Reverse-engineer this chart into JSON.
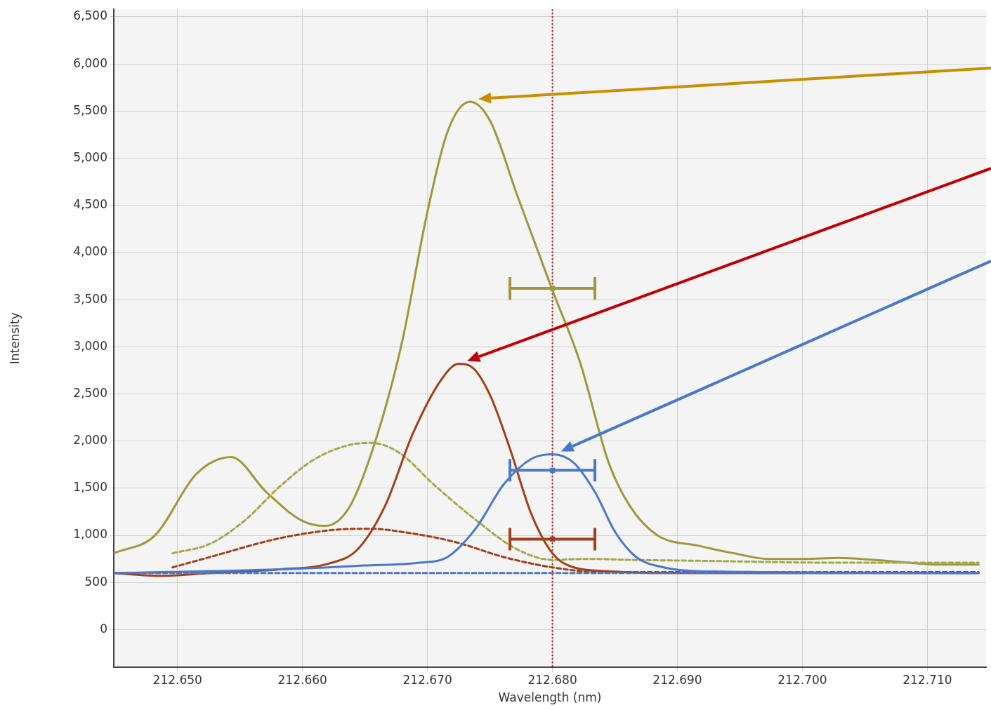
{
  "chart_data": {
    "type": "line",
    "xlabel": "Wavelength (nm)",
    "ylabel": "Intensity",
    "xlim": [
      212.6449,
      212.7147
    ],
    "ylim": [
      -400,
      6580
    ],
    "xticks": [
      {
        "value": 212.65,
        "label": "212.650"
      },
      {
        "value": 212.66,
        "label": "212.660"
      },
      {
        "value": 212.67,
        "label": "212.670"
      },
      {
        "value": 212.68,
        "label": "212.680"
      },
      {
        "value": 212.69,
        "label": "212.690"
      },
      {
        "value": 212.7,
        "label": "212.700"
      },
      {
        "value": 212.71,
        "label": "212.710"
      }
    ],
    "yticks": [
      0,
      500,
      {
        "value": 1000,
        "label": "1,000"
      },
      {
        "value": 1500,
        "label": "1,500"
      },
      {
        "value": 2000,
        "label": "2,000"
      },
      {
        "value": 2500,
        "label": "2,500"
      },
      {
        "value": 3000,
        "label": "3,000"
      },
      {
        "value": 3500,
        "label": "3,500"
      },
      {
        "value": 4000,
        "label": "4,000"
      },
      {
        "value": 4500,
        "label": "4,500"
      },
      {
        "value": 5000,
        "label": "5,000"
      },
      {
        "value": 5500,
        "label": "5,500"
      },
      {
        "value": 6000,
        "label": "6,000"
      },
      {
        "value": 6500,
        "label": "6,500"
      }
    ],
    "grid": true,
    "legend": false,
    "marker": "none",
    "ref_lines": [
      {
        "axis": "x",
        "value": 212.68,
        "color": "#c00000",
        "line_style": "dotted"
      }
    ],
    "series": [
      {
        "color": "#9a9a3c",
        "line_style": "solid",
        "x": [
          212.6449,
          212.6482,
          212.6515,
          212.6543,
          212.6571,
          212.6599,
          212.6618,
          212.6638,
          212.666,
          212.668,
          212.6699,
          212.6716,
          212.6734,
          212.675,
          212.6772,
          212.68,
          212.6822,
          212.6845,
          212.6862,
          212.6884,
          212.6917,
          212.6945,
          212.6973,
          212.7001,
          212.7029,
          212.7057,
          212.7085,
          212.7107,
          212.7141
        ],
        "values": [
          810,
          1000,
          1650,
          1830,
          1460,
          1160,
          1100,
          1310,
          2070,
          3070,
          4370,
          5280,
          5600,
          5400,
          4600,
          3600,
          2840,
          1770,
          1310,
          1000,
          890,
          810,
          750,
          750,
          760,
          740,
          710,
          690,
          690
        ]
      },
      {
        "color": "#a3a84a",
        "line_style": "dashed",
        "x": [
          212.6496,
          212.6526,
          212.6554,
          212.6582,
          212.661,
          212.6638,
          212.6655,
          212.6677,
          212.6705,
          212.6739,
          212.6772,
          212.68,
          212.6828,
          212.6861,
          212.6917,
          212.7029,
          212.7141
        ],
        "values": [
          810,
          910,
          1160,
          1520,
          1810,
          1960,
          1980,
          1880,
          1540,
          1160,
          850,
          740,
          750,
          740,
          730,
          710,
          710
        ]
      },
      {
        "color": "#a0401a",
        "line_style": "solid",
        "x": [
          212.6449,
          212.6487,
          212.6526,
          212.6582,
          212.6621,
          212.6644,
          212.6666,
          212.6688,
          212.6711,
          212.6725,
          212.6736,
          212.675,
          212.6766,
          212.6783,
          212.68,
          212.6817,
          212.6845,
          212.6889,
          212.7141
        ],
        "values": [
          600,
          570,
          600,
          640,
          700,
          850,
          1310,
          2070,
          2650,
          2820,
          2780,
          2490,
          1920,
          1230,
          810,
          660,
          620,
          600,
          600
        ]
      },
      {
        "color": "#a0401a",
        "line_style": "dashed",
        "x": [
          212.6496,
          212.6526,
          212.6582,
          212.6627,
          212.6655,
          212.6683,
          212.6722,
          212.6761,
          212.68,
          212.6839,
          212.6917,
          212.7141
        ],
        "values": [
          660,
          770,
          970,
          1060,
          1070,
          1030,
          930,
          770,
          660,
          610,
          610,
          610
        ]
      },
      {
        "color": "#4a78c8",
        "line_style": "solid",
        "x": [
          212.6449,
          212.6582,
          212.6649,
          212.6694,
          212.6716,
          212.6739,
          212.6761,
          212.6783,
          212.68,
          212.6817,
          212.6834,
          212.685,
          212.6867,
          212.6889,
          212.6917,
          212.7141
        ],
        "values": [
          600,
          640,
          680,
          710,
          770,
          1080,
          1540,
          1810,
          1860,
          1770,
          1460,
          1040,
          770,
          660,
          620,
          600
        ]
      },
      {
        "color": "#4a78c8",
        "line_style": "dashed",
        "x": [
          212.6449,
          212.7141
        ],
        "values": [
          600,
          600
        ]
      },
      {
        "type": "scatter",
        "marker": "square",
        "color": "#9a9a3c",
        "x": [
          212.68
        ],
        "values": [
          3620
        ],
        "xerrors": [
          0.0034
        ]
      },
      {
        "type": "scatter",
        "marker": "square",
        "color": "#4a78c8",
        "x": [
          212.68
        ],
        "values": [
          1690
        ],
        "xerrors": [
          0.0034
        ]
      },
      {
        "type": "scatter",
        "marker": "square",
        "color": "#a0401a",
        "x": [
          212.68
        ],
        "values": [
          960
        ],
        "xerrors": [
          0.0034
        ]
      }
    ]
  }
}
